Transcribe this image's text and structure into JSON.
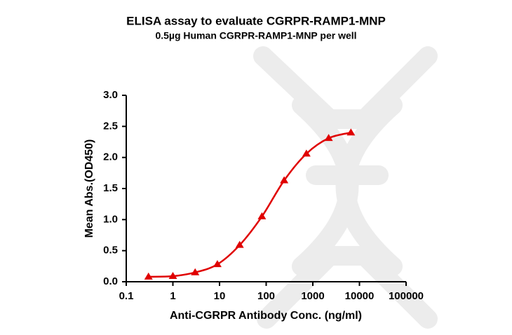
{
  "chart_data": {
    "type": "line",
    "title": "ELISA assay to evaluate CGRPR-RAMP1-MNP",
    "subtitle": "0.5µg Human CGRPR-RAMP1-MNP per well",
    "x_label": "Anti-CGRPR Antibody Conc. (ng/ml)",
    "y_label": "Mean Abs.(OD450)",
    "x_scale": "log",
    "x": [
      0.3,
      1,
      3,
      9,
      27,
      81,
      243,
      729,
      2187,
      6561
    ],
    "series": [
      {
        "color": "#e00000",
        "values": [
          0.08,
          0.09,
          0.15,
          0.28,
          0.59,
          1.05,
          1.63,
          2.06,
          2.31,
          2.4
        ]
      }
    ],
    "xlim": [
      0.1,
      100000
    ],
    "xticks": [
      0.1,
      1,
      10,
      100,
      1000,
      10000,
      100000
    ],
    "ylim": [
      0,
      3
    ],
    "yticks": [
      {
        "value": 0,
        "label": "0.0"
      },
      0.5,
      {
        "value": 1,
        "label": "1.0"
      },
      1.5,
      {
        "value": 2,
        "label": "2.0"
      },
      2.5,
      {
        "value": 3,
        "label": "3.0"
      }
    ]
  }
}
